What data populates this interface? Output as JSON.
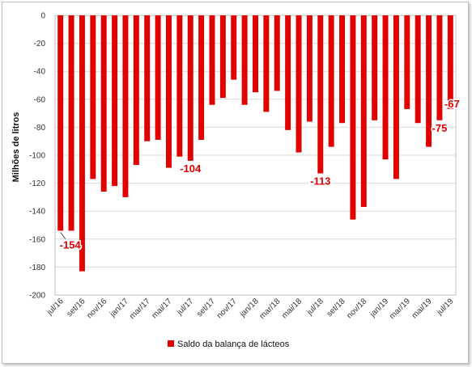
{
  "chart_data": {
    "type": "bar",
    "title": "",
    "xlabel": "",
    "ylabel": "Milhões de litros",
    "ylim": [
      -200,
      0
    ],
    "yticks": [
      0,
      -20,
      -40,
      -60,
      -80,
      -100,
      -120,
      -140,
      -160,
      -180,
      -200
    ],
    "grid": true,
    "legend_position": "bottom",
    "bar_color": "#e00000",
    "label_color": "#e00000",
    "categories": [
      "jul/16",
      "ago/16",
      "set/16",
      "out/16",
      "nov/16",
      "dez/16",
      "jan/17",
      "fev/17",
      "mar/17",
      "abr/17",
      "mai/17",
      "jun/17",
      "jul/17",
      "ago/17",
      "set/17",
      "out/17",
      "nov/17",
      "dez/17",
      "jan/18",
      "fev/18",
      "mar/18",
      "abr/18",
      "mai/18",
      "jun/18",
      "jul/18",
      "ago/18",
      "set/18",
      "out/18",
      "nov/18",
      "dez/18",
      "jan/19",
      "fev/19",
      "mar/19",
      "abr/19",
      "mai/19",
      "jun/19",
      "jul/19"
    ],
    "x_tick_labels": [
      "jul/16",
      "set/16",
      "nov/16",
      "jan/17",
      "mar/17",
      "mai/17",
      "jul/17",
      "set/17",
      "nov/17",
      "jan/18",
      "mar/18",
      "mai/18",
      "jul/18",
      "set/18",
      "nov/18",
      "jan/19",
      "mar/19",
      "mai/19",
      "jul/19"
    ],
    "series": [
      {
        "name": "Saldo da balança de lácteos",
        "values": [
          -154,
          -154,
          -183,
          -117,
          -126,
          -122,
          -130,
          -107,
          -90,
          -89,
          -109,
          -101,
          -104,
          -89,
          -64,
          -59,
          -46,
          -64,
          -55,
          -69,
          -54,
          -82,
          -98,
          -76,
          -113,
          -94,
          -77,
          -146,
          -137,
          -75,
          -103,
          -117,
          -67,
          -77,
          -94,
          -75,
          -67
        ]
      }
    ],
    "data_labels": [
      {
        "category": "jul/16",
        "text": "-154"
      },
      {
        "category": "jul/17",
        "text": "-104"
      },
      {
        "category": "jul/18",
        "text": "-113"
      },
      {
        "category": "jun/19",
        "text": "-75"
      },
      {
        "category": "jul/19",
        "text": "-67"
      }
    ]
  }
}
